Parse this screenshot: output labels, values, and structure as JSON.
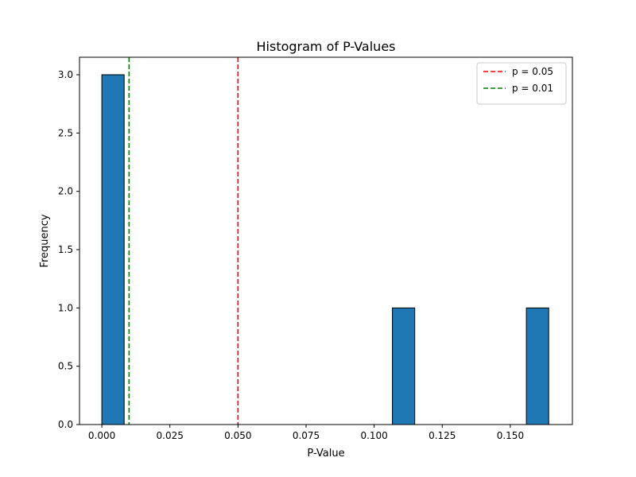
{
  "chart_data": {
    "type": "bar",
    "title": "Histogram of P-Values",
    "xlabel": "P-Value",
    "ylabel": "Frequency",
    "xlim": [
      -0.0082,
      0.1728
    ],
    "ylim": [
      0,
      3.15
    ],
    "grid": false,
    "legend_position": "top-right",
    "bar_color": "#1f77b4",
    "bar_edge_color": "#000000",
    "bins": [
      {
        "x0": 0.0,
        "x1": 0.0082,
        "count": 3
      },
      {
        "x0": 0.1067,
        "x1": 0.1149,
        "count": 1
      },
      {
        "x0": 0.1559,
        "x1": 0.1641,
        "count": 1
      }
    ],
    "x_ticks": [
      {
        "value": 0.0,
        "label": "0.000"
      },
      {
        "value": 0.025,
        "label": "0.025"
      },
      {
        "value": 0.05,
        "label": "0.050"
      },
      {
        "value": 0.075,
        "label": "0.075"
      },
      {
        "value": 0.1,
        "label": "0.100"
      },
      {
        "value": 0.125,
        "label": "0.125"
      },
      {
        "value": 0.15,
        "label": "0.150"
      }
    ],
    "y_ticks": [
      {
        "value": 0.0,
        "label": "0.0"
      },
      {
        "value": 0.5,
        "label": "0.5"
      },
      {
        "value": 1.0,
        "label": "1.0"
      },
      {
        "value": 1.5,
        "label": "1.5"
      },
      {
        "value": 2.0,
        "label": "2.0"
      },
      {
        "value": 2.5,
        "label": "2.5"
      },
      {
        "value": 3.0,
        "label": "3.0"
      }
    ],
    "reference_lines": [
      {
        "x": 0.05,
        "label": "p = 0.05",
        "color": "#ff0000",
        "style": "dashed"
      },
      {
        "x": 0.01,
        "label": "p = 0.01",
        "color": "#008000",
        "style": "dashed"
      }
    ]
  }
}
